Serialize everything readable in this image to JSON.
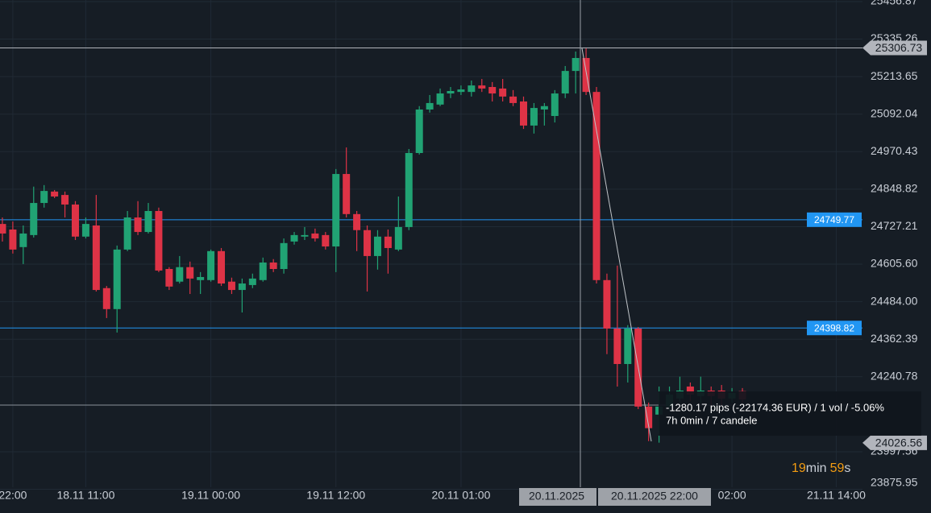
{
  "chart_data": {
    "type": "candlestick",
    "up_color": "#21a374",
    "down_color": "#de3346",
    "grid": true,
    "xlim": [
      -0.23,
      82.52
    ],
    "ylim": [
      23799,
      25462
    ],
    "yticks": [
      25456.87,
      25335.26,
      25213.65,
      25092.04,
      24970.43,
      24848.82,
      24727.21,
      {
        "value": 24605.6,
        "label": "24605.60"
      },
      {
        "value": 24484,
        "label": "24484.00"
      },
      24362.39,
      24240.78,
      23997.56,
      23875.95
    ],
    "xticks": [
      {
        "value": 1,
        "label": "22:00"
      },
      {
        "value": 8,
        "label": "18.11 11:00"
      },
      {
        "value": 20,
        "label": "19.11 00:00"
      },
      {
        "value": 32,
        "label": "19.11 12:00"
      },
      {
        "value": 44,
        "label": "20.11 01:00"
      },
      {
        "value": 70,
        "label": "02:00"
      },
      {
        "value": 80,
        "label": "21.11 14:00"
      }
    ],
    "candles": {
      "open": [
        24736,
        24718,
        24661,
        24700,
        24804,
        24841,
        24830,
        24799,
        24695,
        24731,
        24528,
        24460,
        24653,
        24757,
        24710,
        24778,
        24590,
        24549,
        24596,
        24554,
        24554,
        24648,
        24549,
        24522,
        24538,
        24554,
        24611,
        24590,
        24679,
        24695,
        24705,
        24700,
        24663,
        24898,
        24768,
        24716,
        24632,
        24695,
        24653,
        24726,
        24966,
        25107,
        25123,
        25159,
        25164,
        25164,
        25185,
        25180,
        25175,
        25149,
        25133,
        25055,
        25107,
        25086,
        25159,
        25232,
        25274,
        25164,
        24554,
        24397,
        24282,
        24397,
        24144,
        24118,
        24144,
        24170,
        24209,
        24178,
        24196,
        24196,
        24170,
        24194
      ],
      "high": [
        24757,
        24744,
        24731,
        24857,
        24862,
        24846,
        24841,
        24810,
        24757,
        24830,
        24535,
        24666,
        24778,
        24810,
        24804,
        24789,
        24596,
        24632,
        24614,
        24580,
        24653,
        24658,
        24562,
        24559,
        24575,
        24627,
        24622,
        24689,
        24710,
        24726,
        24721,
        24710,
        24914,
        24984,
        24778,
        24731,
        24716,
        24718,
        24825,
        24979,
        25118,
        25154,
        25175,
        25180,
        25185,
        25201,
        25206,
        25196,
        25206,
        25170,
        25149,
        25128,
        25128,
        25170,
        25248,
        25295,
        25305,
        25180,
        24575,
        24601,
        24408,
        24402,
        24157,
        24209,
        24209,
        24241,
        24222,
        24241,
        24209,
        24214,
        24204,
        24204
      ],
      "low": [
        24679,
        24640,
        24606,
        24692,
        24789,
        24820,
        24757,
        24684,
        24689,
        24517,
        24431,
        24384,
        24648,
        24700,
        24705,
        24580,
        24522,
        24543,
        24509,
        24509,
        24549,
        24535,
        24509,
        24449,
        24528,
        24549,
        24580,
        24575,
        24669,
        24684,
        24679,
        24653,
        24580,
        24757,
        24648,
        24517,
        24588,
        24575,
        24648,
        24716,
        24961,
        25097,
        25118,
        25144,
        25154,
        25149,
        25164,
        25133,
        25133,
        25118,
        25044,
        25029,
        25055,
        25065,
        25144,
        25159,
        25154,
        24543,
        24314,
        24209,
        24222,
        24136,
        24032,
        24027,
        24131,
        24157,
        24162,
        24157,
        24144,
        24144,
        24157,
        24157
      ],
      "close": [
        24705,
        24653,
        24705,
        24804,
        24843,
        24825,
        24799,
        24695,
        24736,
        24522,
        24460,
        24653,
        24757,
        24710,
        24778,
        24585,
        24533,
        24596,
        24559,
        24564,
        24648,
        24543,
        24522,
        24543,
        24559,
        24611,
        24590,
        24674,
        24700,
        24700,
        24689,
        24663,
        24898,
        24768,
        24716,
        24632,
        24695,
        24658,
        24726,
        24966,
        25107,
        25128,
        25159,
        25167,
        25172,
        25185,
        25175,
        25159,
        25149,
        25128,
        25055,
        25112,
        25118,
        25159,
        25232,
        25274,
        25164,
        24554,
        24397,
        24282,
        24397,
        24144,
        24074,
        24144,
        24183,
        24196,
        24183,
        24196,
        24178,
        24170,
        24188,
        24167
      ]
    },
    "price_lines": [
      {
        "value": 24749.77,
        "color": "#2196f3"
      },
      {
        "value": 24398.82,
        "color": "#2196f3"
      }
    ],
    "crosshair_price": 25306.73,
    "last_price": 24026.56,
    "time_labels": [
      "20.11.2025",
      "20.11.2025 22:00"
    ],
    "measure": {
      "line1": "-1280.17 pips (-22174.36 EUR) / 1 vol / -5.06%",
      "line2": "7h 0min / 7 candele"
    },
    "countdown": {
      "minutes": "19",
      "min_unit": "min",
      "seconds": "59",
      "sec_unit": "s"
    }
  }
}
